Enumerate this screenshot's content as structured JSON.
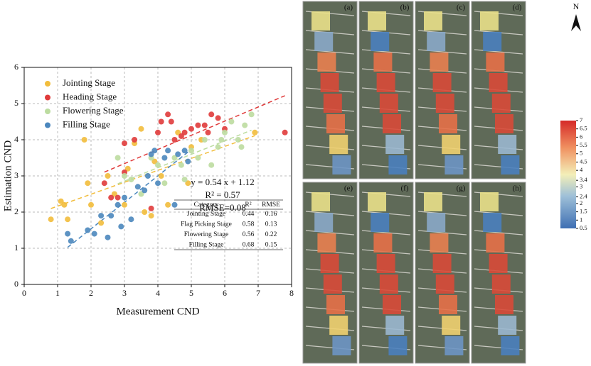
{
  "chart_data": {
    "type": "scatter",
    "x_label": "Measurement CND",
    "y_label": "Estimation CND",
    "xlim": [
      0,
      8
    ],
    "xticks": [
      0,
      1,
      2,
      3,
      4,
      5,
      6,
      7,
      8
    ],
    "ylim": [
      0,
      6
    ],
    "yticks": [
      0,
      1,
      2,
      3,
      4,
      5,
      6
    ],
    "grid": true,
    "legend": "upper left",
    "annotations": [
      "y = 0.54 x + 1.12",
      "R² = 0.57",
      "RMSE=0.08"
    ],
    "series": [
      {
        "name": "Jointing Stage",
        "color": "#f2bd3c",
        "x": [
          0.8,
          1.1,
          1.2,
          1.3,
          1.8,
          1.9,
          2.3,
          2.5,
          2.7,
          3.0,
          3.1,
          3.3,
          3.5,
          3.6,
          3.8,
          3.9,
          4.1,
          4.3,
          4.6,
          5.0,
          5.3,
          6.9,
          4.9,
          2.0
        ],
        "values": [
          1.8,
          2.3,
          2.2,
          1.8,
          4.0,
          2.8,
          1.7,
          3.0,
          2.5,
          2.2,
          3.2,
          3.9,
          4.3,
          2.0,
          1.9,
          3.4,
          3.0,
          2.2,
          4.2,
          3.8,
          4.0,
          4.2,
          2.8,
          2.2
        ]
      },
      {
        "name": "Heading Stage",
        "color": "#e03b3b",
        "x": [
          2.4,
          2.6,
          2.8,
          3.0,
          3.0,
          3.3,
          3.8,
          4.0,
          4.1,
          4.3,
          4.5,
          4.7,
          4.8,
          5.0,
          5.2,
          5.4,
          5.6,
          5.8,
          6.0,
          7.8,
          4.4,
          5.5
        ],
        "values": [
          2.8,
          2.4,
          2.4,
          3.1,
          3.9,
          4.0,
          2.1,
          4.2,
          4.5,
          4.7,
          4.0,
          4.1,
          4.2,
          4.3,
          4.4,
          4.4,
          4.7,
          4.6,
          4.3,
          4.2,
          4.5,
          4.2
        ]
      },
      {
        "name": "Flowering Stage",
        "color": "#bcdca0",
        "x": [
          2.8,
          3.0,
          3.5,
          3.8,
          4.0,
          4.2,
          4.5,
          4.7,
          5.0,
          5.2,
          5.4,
          5.6,
          5.8,
          6.0,
          6.2,
          6.4,
          6.6,
          6.8,
          4.8,
          5.9,
          6.5,
          3.2
        ],
        "values": [
          3.5,
          3.0,
          2.5,
          3.5,
          3.3,
          2.8,
          3.5,
          3.3,
          3.7,
          3.5,
          4.0,
          3.3,
          3.8,
          4.2,
          4.5,
          4.0,
          4.4,
          4.7,
          2.9,
          4.0,
          3.8,
          2.9
        ]
      },
      {
        "name": "Filling Stage",
        "color": "#4b87bd",
        "x": [
          1.3,
          1.4,
          1.9,
          2.1,
          2.3,
          2.5,
          2.6,
          2.8,
          2.9,
          3.0,
          3.2,
          3.4,
          3.6,
          3.8,
          3.9,
          4.0,
          4.2,
          4.3,
          4.5,
          4.6,
          4.8,
          4.9,
          3.7
        ],
        "values": [
          1.4,
          1.2,
          1.5,
          1.4,
          1.9,
          1.3,
          1.9,
          2.2,
          1.6,
          2.4,
          1.8,
          2.7,
          2.6,
          3.6,
          3.7,
          2.8,
          3.5,
          3.7,
          2.2,
          3.6,
          3.7,
          3.4,
          3.0
        ]
      }
    ],
    "table": {
      "columns": [
        "Category",
        "R²",
        "RMSE"
      ],
      "rows": [
        [
          "Jointing Stage",
          0.44,
          0.16
        ],
        [
          "Flag Picking Stage",
          0.58,
          0.13
        ],
        [
          "Flowering Stage",
          0.56,
          0.22
        ],
        [
          "Filling Stage",
          0.68,
          0.15
        ]
      ]
    }
  },
  "maps": {
    "panels": [
      "(a)",
      "(b)",
      "(c)",
      "(d)",
      "(e)",
      "(f)",
      "(g)",
      "(h)"
    ],
    "north": "N"
  },
  "colorbar": {
    "lim": [
      0.5,
      7
    ],
    "ticks": [
      7,
      6.5,
      6,
      5.5,
      5,
      4.5,
      4,
      3.4,
      3,
      2.4,
      2,
      1.5,
      1,
      0.5
    ]
  }
}
